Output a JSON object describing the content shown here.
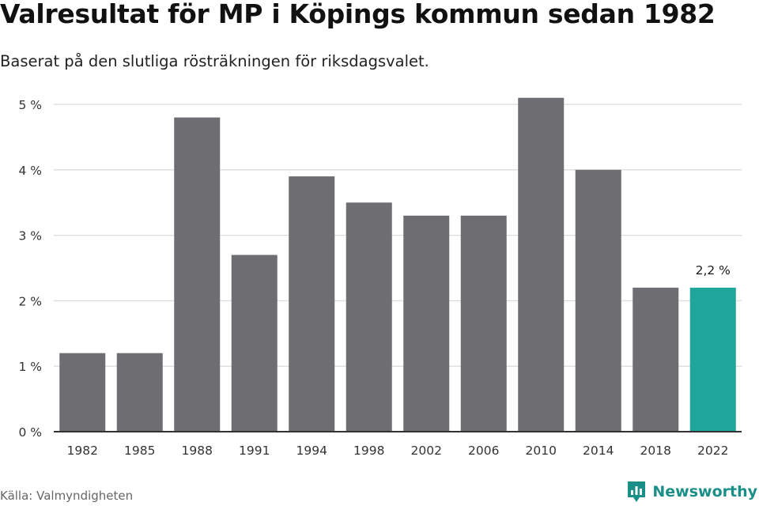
{
  "header": {
    "title": "Valresultat för MP i Köpings kommun sedan 1982",
    "subtitle": "Baserat på den slutliga rösträkningen för riksdagsvalet."
  },
  "footer": {
    "source": "Källa: Valmyndigheten",
    "brand": "Newsworthy",
    "brand_icon": "newsworthy-logo-icon"
  },
  "colors": {
    "bar": "#6e6d72",
    "highlight": "#1fa599",
    "grid": "#dcdcdc",
    "axis": "#333333",
    "text": "#1a1a1a"
  },
  "chart_data": {
    "type": "bar",
    "title": "Valresultat för MP i Köpings kommun sedan 1982",
    "subtitle": "Baserat på den slutliga rösträkningen för riksdagsvalet.",
    "categories": [
      "1982",
      "1985",
      "1988",
      "1991",
      "1994",
      "1998",
      "2002",
      "2006",
      "2010",
      "2014",
      "2018",
      "2022"
    ],
    "values": [
      1.2,
      1.2,
      4.8,
      2.7,
      3.9,
      3.5,
      3.3,
      3.3,
      5.1,
      4.0,
      2.2,
      2.2
    ],
    "unit": "%",
    "ylim": [
      0,
      5
    ],
    "yticks": [
      "0 %",
      "1 %",
      "2 %",
      "3 %",
      "4 %",
      "5 %"
    ],
    "grid": true,
    "highlight_index": 11,
    "data_labels": [
      {
        "index": 11,
        "text": "2,2 %"
      }
    ]
  }
}
